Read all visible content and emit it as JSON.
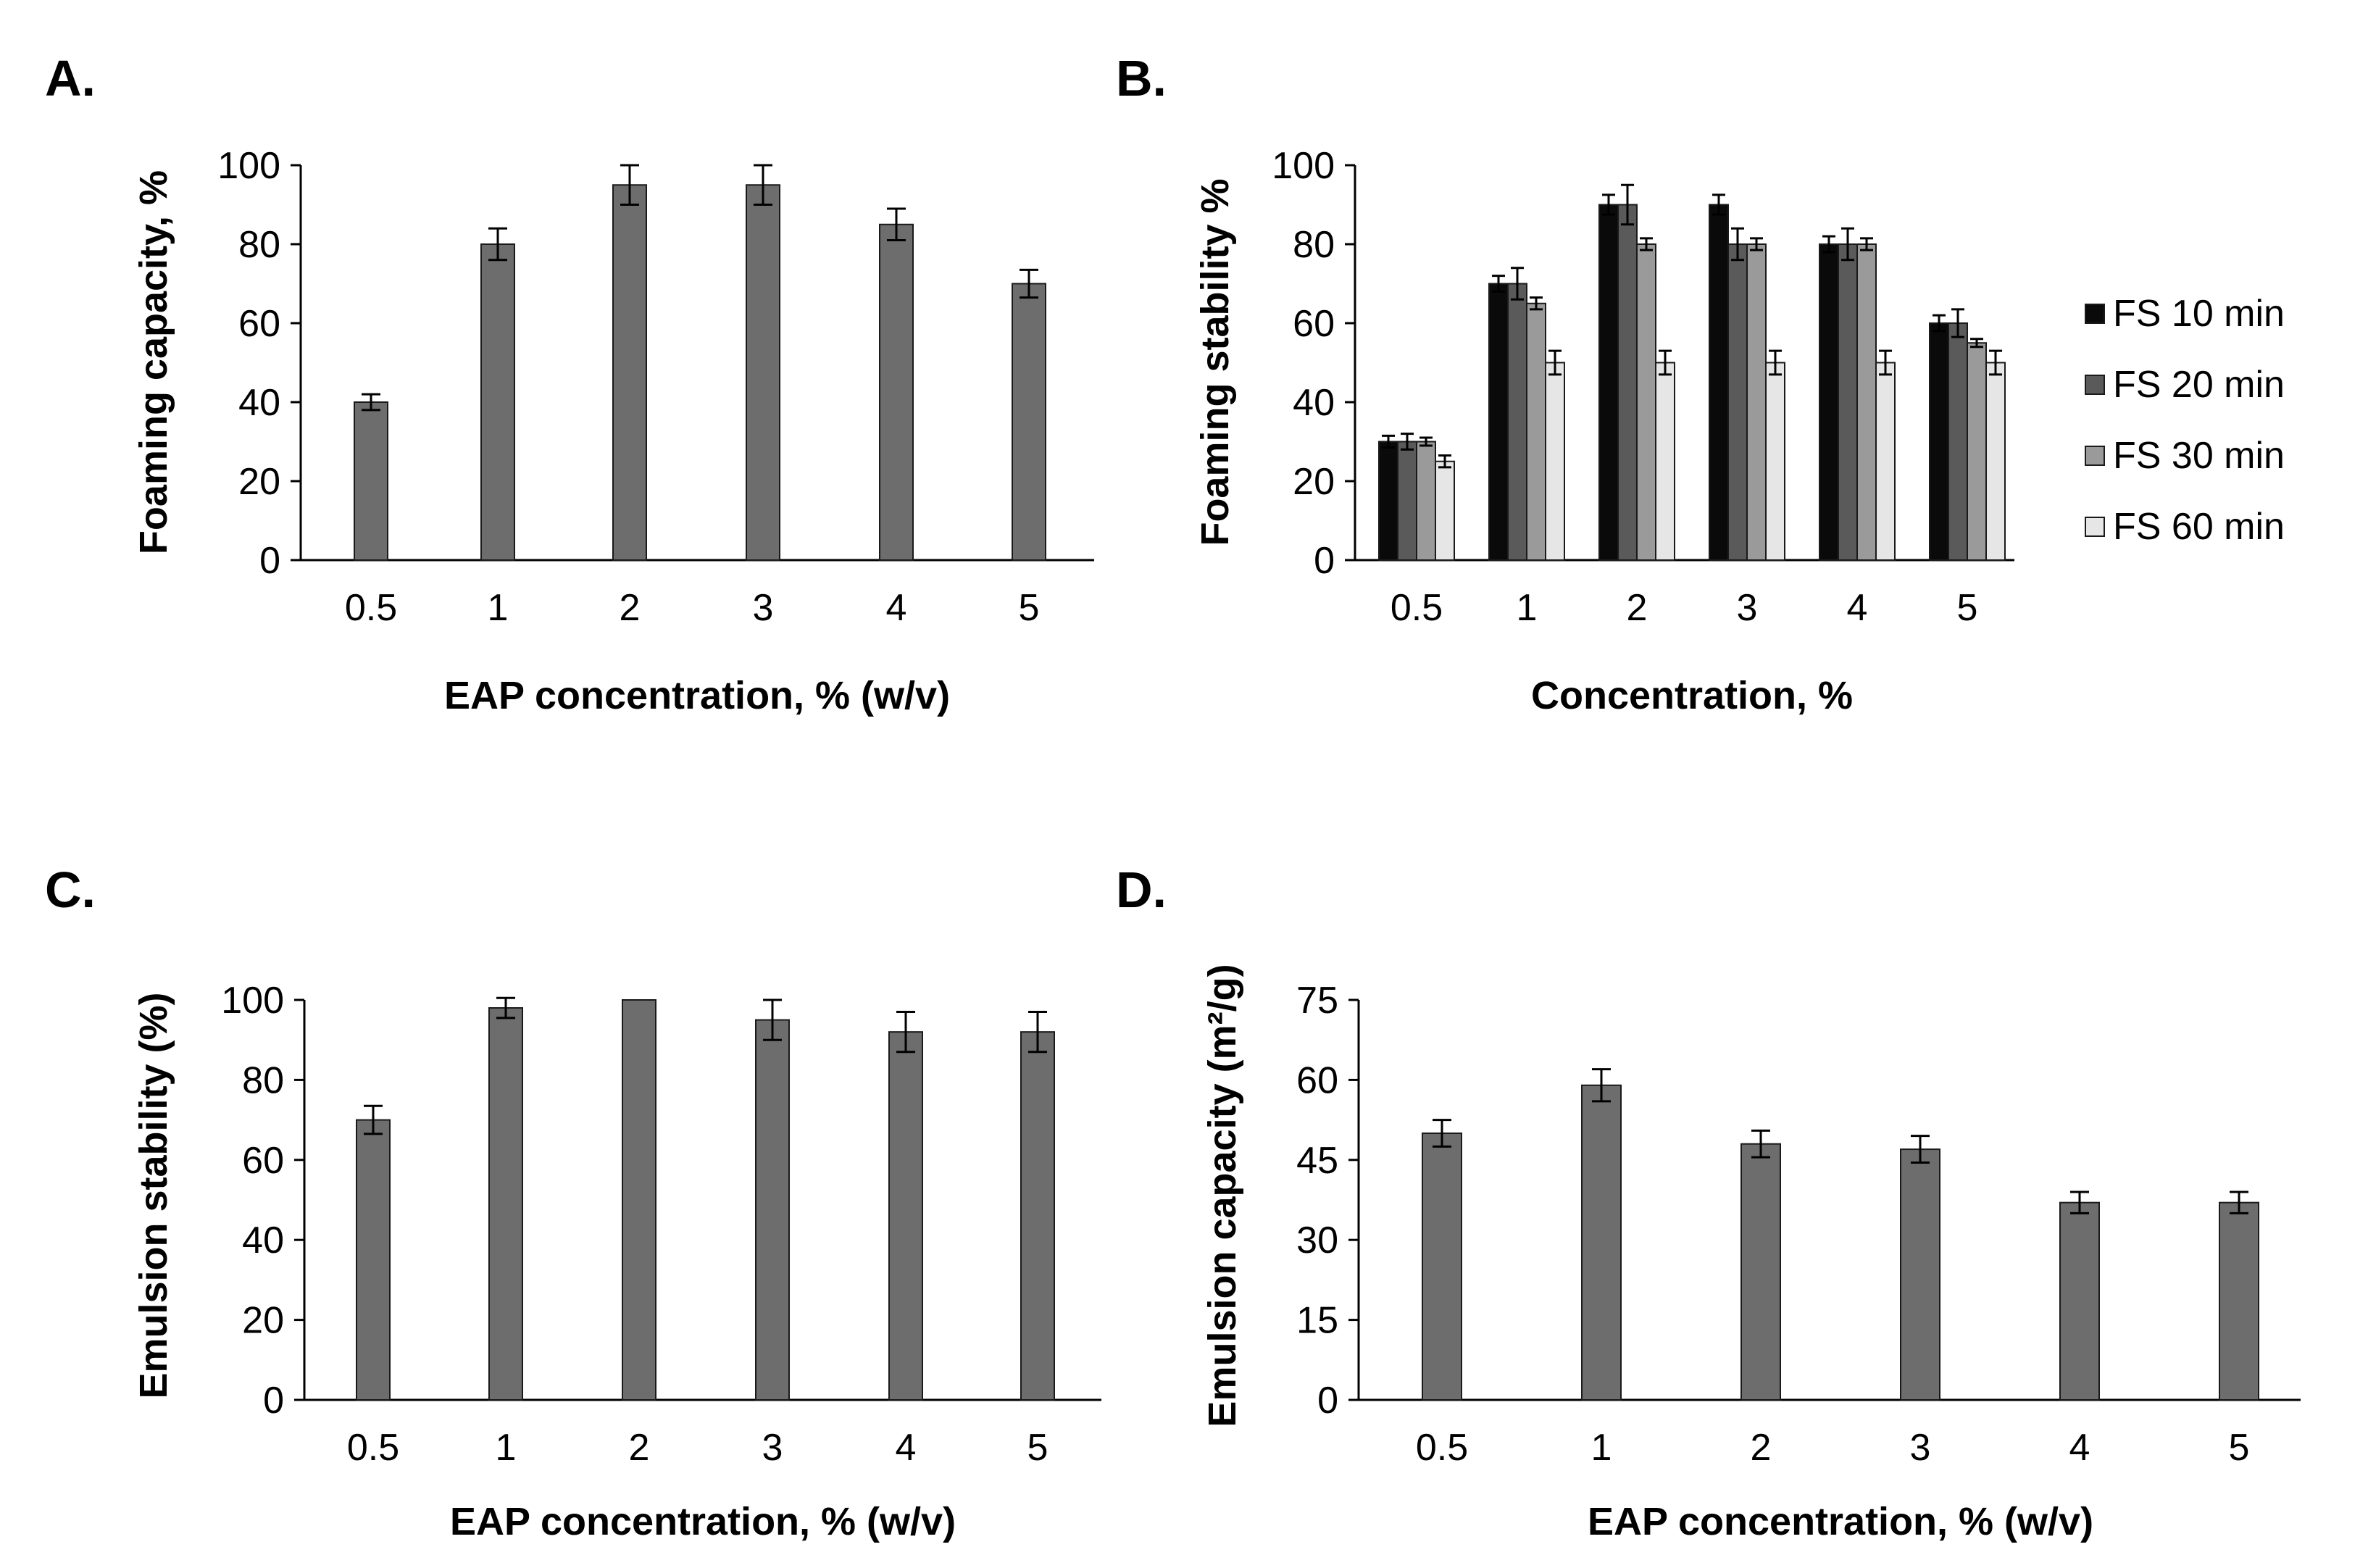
{
  "colors": {
    "bar": "#6d6d6d",
    "bar_stroke": "#1a1a1a",
    "axis": "#000000",
    "fs10": "#0a0a0a",
    "fs20": "#5a5a5a",
    "fs30": "#9a9a9a",
    "fs60": "#e6e6e6"
  },
  "chart_data": [
    {
      "id": "A",
      "panel_label": "A.",
      "type": "bar",
      "categories": [
        "0.5",
        "1",
        "2",
        "3",
        "4",
        "5"
      ],
      "series": [
        {
          "name": "Foaming capacity",
          "values": [
            40,
            80,
            95,
            95,
            85,
            70
          ],
          "errors": [
            2,
            4,
            5,
            5,
            4,
            3.5
          ]
        }
      ],
      "xlabel": "EAP concentration, % (w/v)",
      "ylabel": "Foaming capacity, %",
      "ylim": [
        0,
        100
      ],
      "yticks": [
        0,
        20,
        40,
        60,
        80,
        100
      ],
      "legend": null
    },
    {
      "id": "B",
      "panel_label": "B.",
      "type": "bar",
      "categories": [
        "0.5",
        "1",
        "2",
        "3",
        "4",
        "5"
      ],
      "series": [
        {
          "name": "FS 10 min",
          "values": [
            30,
            70,
            90,
            90,
            80,
            60
          ],
          "errors": [
            1.5,
            2,
            2.5,
            2.5,
            2,
            2
          ]
        },
        {
          "name": "FS 20 min",
          "values": [
            30,
            70,
            90,
            80,
            80,
            60
          ],
          "errors": [
            2,
            4,
            5,
            4,
            4,
            3.5
          ]
        },
        {
          "name": "FS 30 min",
          "values": [
            30,
            65,
            80,
            80,
            80,
            55
          ],
          "errors": [
            1,
            1.5,
            1.5,
            1.5,
            1.5,
            1
          ]
        },
        {
          "name": "FS 60 min",
          "values": [
            25,
            50,
            50,
            50,
            50,
            50
          ],
          "errors": [
            1.5,
            3,
            3,
            3,
            3,
            3
          ]
        }
      ],
      "xlabel": "Concentration, %",
      "ylabel": "Foaming stability %",
      "ylim": [
        0,
        100
      ],
      "yticks": [
        0,
        20,
        40,
        60,
        80,
        100
      ],
      "legend": "right"
    },
    {
      "id": "C",
      "panel_label": "C.",
      "type": "bar",
      "categories": [
        "0.5",
        "1",
        "2",
        "3",
        "4",
        "5"
      ],
      "series": [
        {
          "name": "Emulsion stability",
          "values": [
            70,
            98,
            100,
            95,
            92,
            92
          ],
          "errors": [
            3.5,
            2.5,
            0,
            5,
            5,
            5
          ]
        }
      ],
      "xlabel": "EAP concentration, % (w/v)",
      "ylabel": "Emulsion  stability (%)",
      "ylim": [
        0,
        100
      ],
      "yticks": [
        0,
        20,
        40,
        60,
        80,
        100
      ],
      "legend": null
    },
    {
      "id": "D",
      "panel_label": "D.",
      "type": "bar",
      "categories": [
        "0.5",
        "1",
        "2",
        "3",
        "4",
        "5"
      ],
      "series": [
        {
          "name": "Emulsion capacity",
          "values": [
            50,
            59,
            48,
            47,
            37,
            37
          ],
          "errors": [
            2.5,
            3,
            2.5,
            2.5,
            2,
            2
          ]
        }
      ],
      "xlabel": "EAP concentration, % (w/v)",
      "ylabel": "Emulsion capacity (m²/g)",
      "ylim": [
        0,
        75
      ],
      "yticks": [
        0,
        15,
        30,
        45,
        60,
        75
      ],
      "legend": null
    }
  ]
}
